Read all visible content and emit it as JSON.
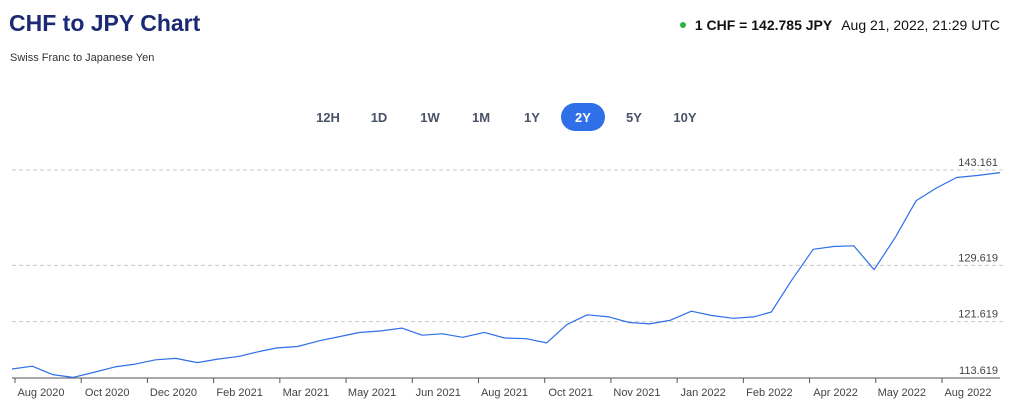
{
  "header": {
    "title": "CHF to JPY Chart",
    "subtitle": "Swiss Franc to Japanese Yen",
    "rate": "1 CHF = 142.785 JPY",
    "timestamp": "Aug 21, 2022, 21:29 UTC",
    "status_color": "#2fb344"
  },
  "tabs": [
    {
      "label": "12H",
      "active": false
    },
    {
      "label": "1D",
      "active": false
    },
    {
      "label": "1W",
      "active": false
    },
    {
      "label": "1M",
      "active": false
    },
    {
      "label": "1Y",
      "active": false
    },
    {
      "label": "2Y",
      "active": true
    },
    {
      "label": "5Y",
      "active": false
    },
    {
      "label": "10Y",
      "active": false
    }
  ],
  "chart_data": {
    "type": "line",
    "line_color": "#2f6fe7",
    "grid": "dashed horizontal",
    "y_axis_side": "right",
    "ylim": [
      113.619,
      143.161
    ],
    "y_ticks": [
      "143.161",
      "129.619",
      "121.619",
      "113.619"
    ],
    "x_ticks": [
      "Aug 2020",
      "Oct 2020",
      "Dec 2020",
      "Feb 2021",
      "Mar 2021",
      "May 2021",
      "Jun 2021",
      "Aug 2021",
      "Oct 2021",
      "Nov 2021",
      "Jan 2022",
      "Feb 2022",
      "Apr 2022",
      "May 2022",
      "Aug 2022"
    ],
    "series": [
      {
        "x": [
          "2020-08-21",
          "2020-09-05",
          "2020-09-20",
          "2020-10-05",
          "2020-10-20",
          "2020-11-05",
          "2020-11-20",
          "2020-12-05",
          "2020-12-20",
          "2021-01-05",
          "2021-01-20",
          "2021-02-05",
          "2021-02-20",
          "2021-03-05",
          "2021-03-20",
          "2021-04-05",
          "2021-04-20",
          "2021-05-05",
          "2021-05-20",
          "2021-06-05",
          "2021-06-20",
          "2021-07-05",
          "2021-07-20",
          "2021-08-05",
          "2021-08-20",
          "2021-09-05",
          "2021-09-20",
          "2021-10-05",
          "2021-10-20",
          "2021-11-05",
          "2021-11-20",
          "2021-12-05",
          "2021-12-20",
          "2022-01-05",
          "2022-01-20",
          "2022-02-05",
          "2022-02-20",
          "2022-03-05",
          "2022-03-20",
          "2022-04-05",
          "2022-04-20",
          "2022-05-05",
          "2022-05-20",
          "2022-06-05",
          "2022-06-20",
          "2022-07-05",
          "2022-07-20",
          "2022-08-05",
          "2022-08-21"
        ],
        "y": [
          114.9,
          115.3,
          114.1,
          113.7,
          114.4,
          115.2,
          115.6,
          116.2,
          116.4,
          115.8,
          116.3,
          116.7,
          117.4,
          117.9,
          118.1,
          118.9,
          119.5,
          120.1,
          120.3,
          120.7,
          119.7,
          119.9,
          119.4,
          120.1,
          119.3,
          119.2,
          118.6,
          121.2,
          122.6,
          122.3,
          121.5,
          121.3,
          121.8,
          123.1,
          122.5,
          122.1,
          122.3,
          123.0,
          127.5,
          131.9,
          132.3,
          132.4,
          129.0,
          133.7,
          138.8,
          140.6,
          142.1,
          142.4,
          142.79
        ]
      }
    ]
  }
}
